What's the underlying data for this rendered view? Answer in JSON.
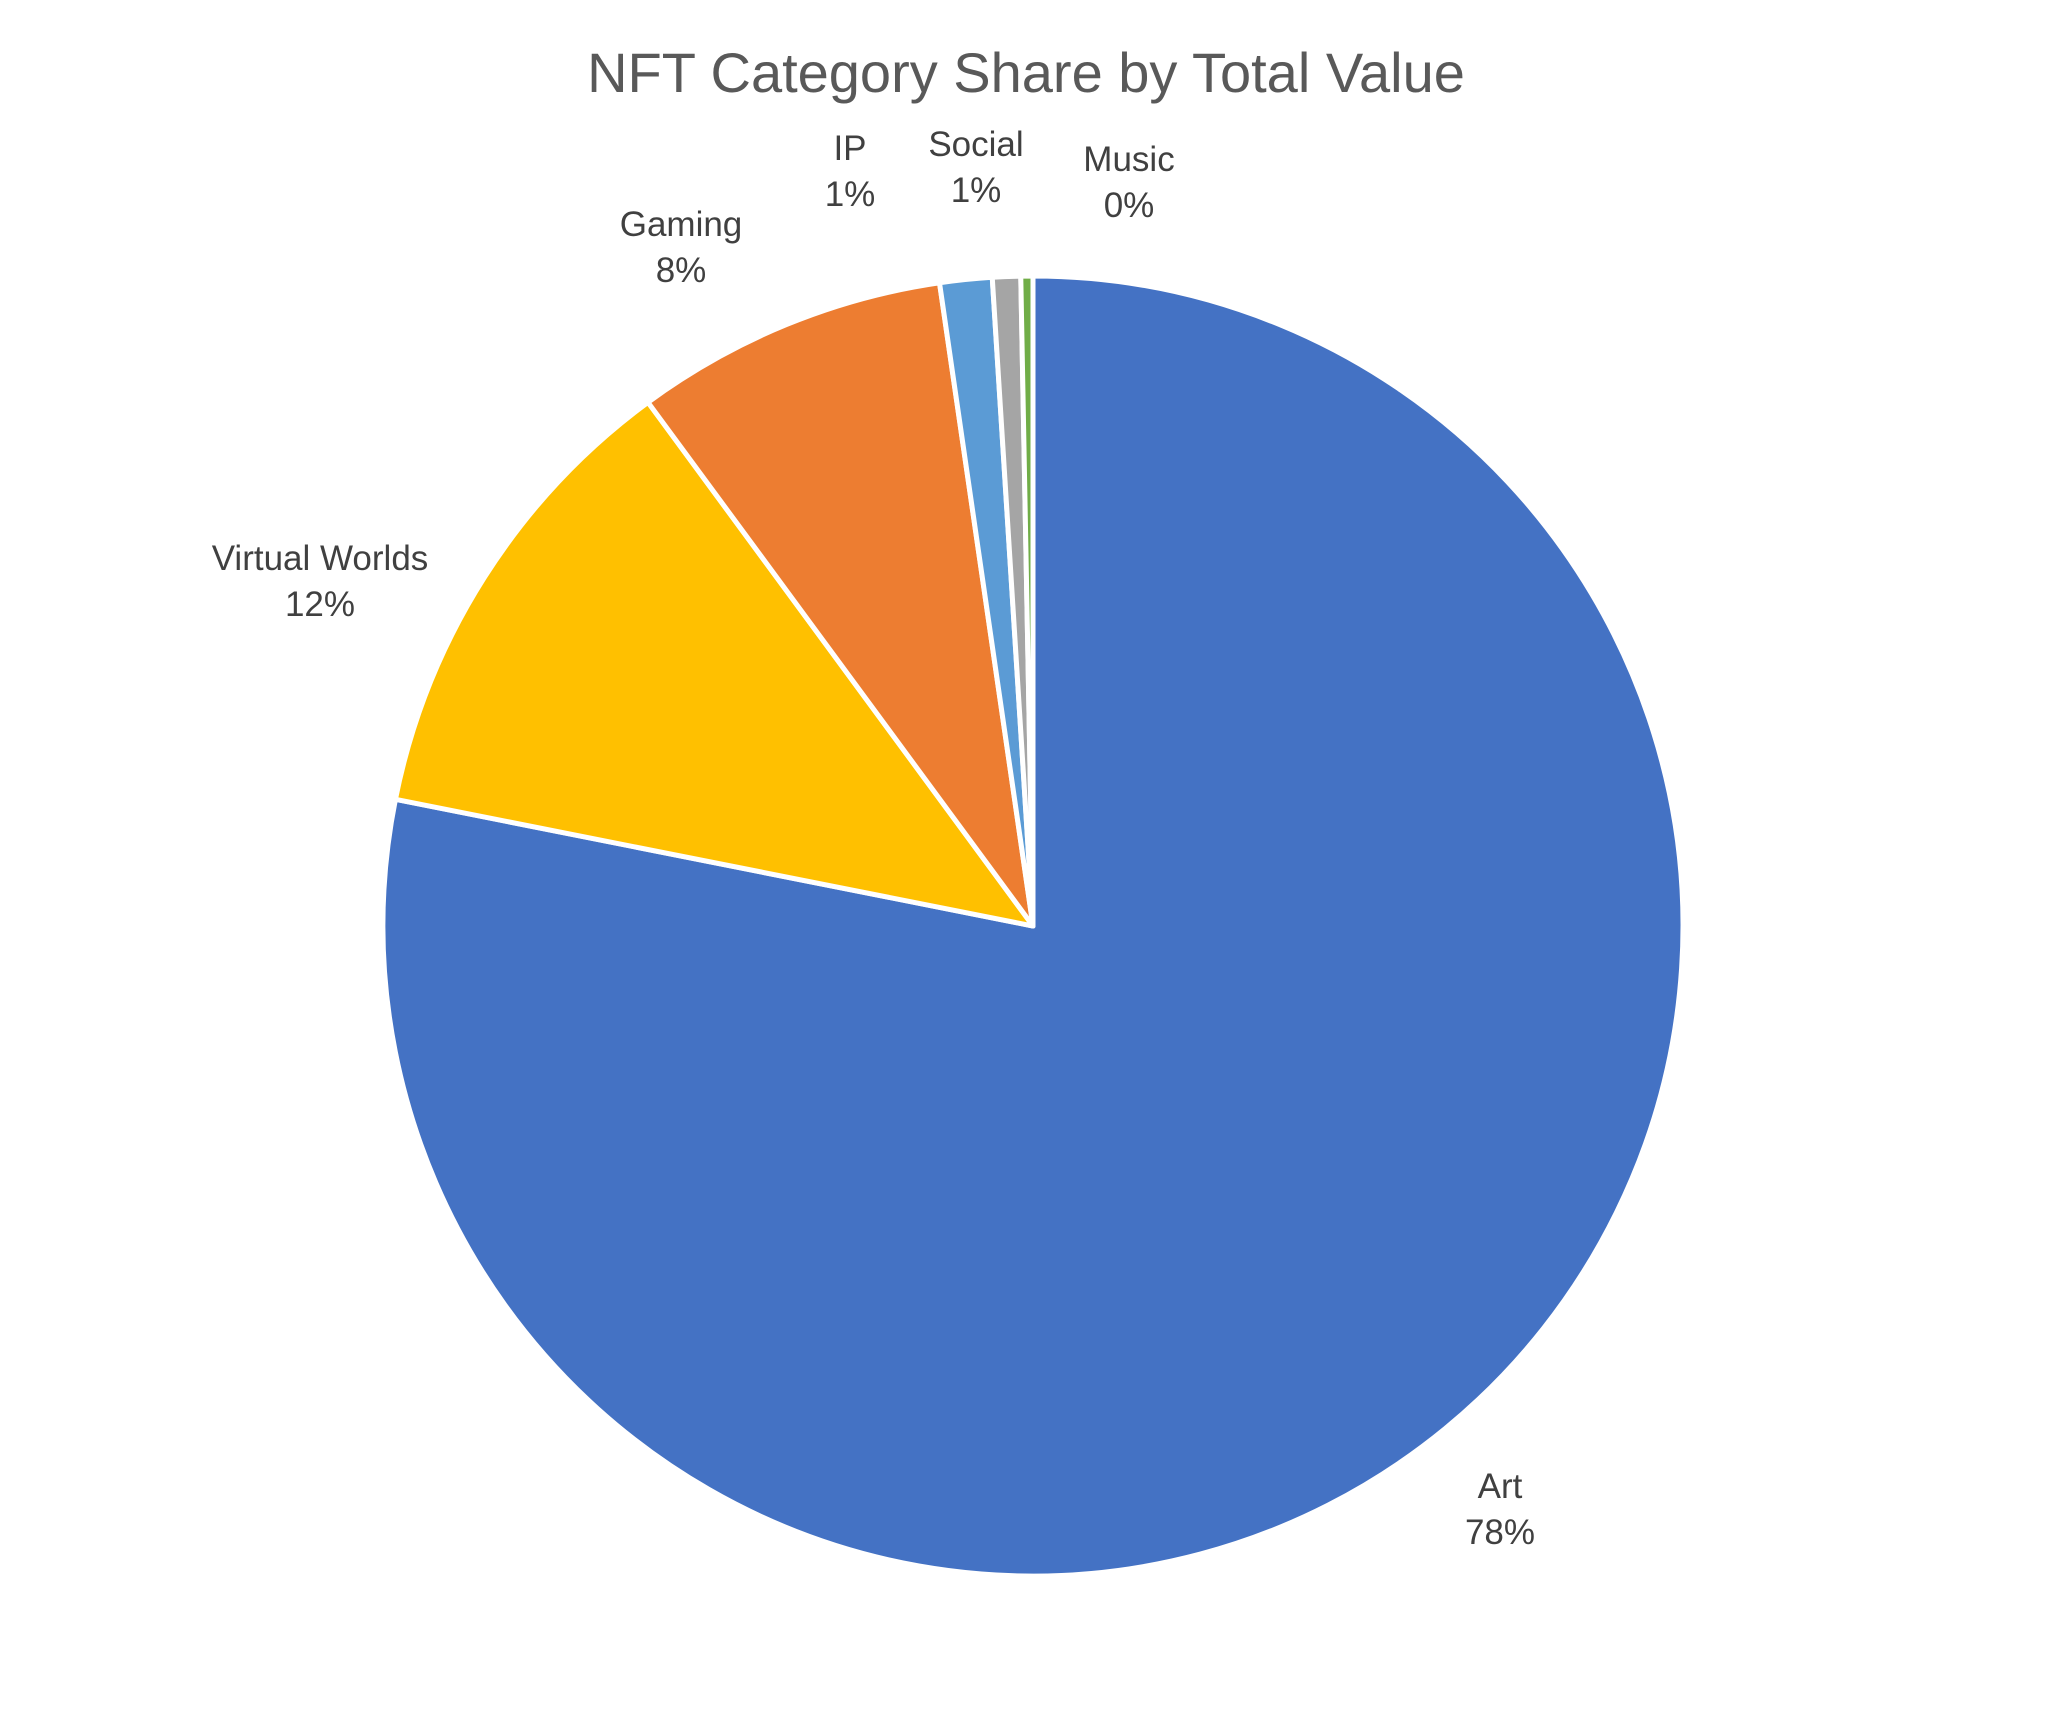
{
  "chart_data": {
    "type": "pie",
    "title": "NFT Category Share by Total Value",
    "start_angle_deg": 0,
    "direction": "clockwise",
    "slices": [
      {
        "label": "Art",
        "percent_label": "78%",
        "value": 78.2,
        "color": "#4472C4"
      },
      {
        "label": "Virtual Worlds",
        "percent_label": "12%",
        "value": 11.8,
        "color": "#FFC000"
      },
      {
        "label": "Gaming",
        "percent_label": "8%",
        "value": 7.8,
        "color": "#ED7D31"
      },
      {
        "label": "IP",
        "percent_label": "1%",
        "value": 1.3,
        "color": "#5B9BD5"
      },
      {
        "label": "Social",
        "percent_label": "1%",
        "value": 0.7,
        "color": "#A5A5A5"
      },
      {
        "label": "Music",
        "percent_label": "0%",
        "value": 0.3,
        "color": "#70AD47"
      }
    ],
    "legend": "none"
  }
}
